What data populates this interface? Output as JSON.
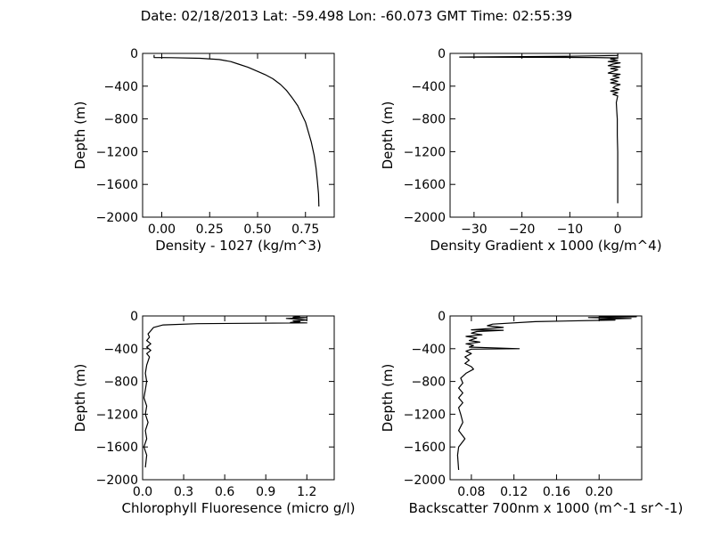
{
  "figure": {
    "title": "Date: 02/18/2013  Lat:  -59.498 Lon:  -60.073  GMT Time: 02:55:39"
  },
  "chart_data": [
    {
      "type": "line",
      "xlabel": "Density - 1027 (kg/m^3)",
      "ylabel": "Depth (m)",
      "xlim": [
        -0.1,
        0.9
      ],
      "ylim": [
        -2000,
        0
      ],
      "xticks": [
        0.0,
        0.25,
        0.5,
        0.75
      ],
      "xtick_labels": [
        "0.00",
        "0.25",
        "0.50",
        "0.75"
      ],
      "yticks": [
        0,
        -400,
        -800,
        -1200,
        -1600,
        -2000
      ],
      "ytick_labels": [
        "0",
        "−400",
        "−800",
        "−1200",
        "−1600",
        "−2000"
      ],
      "grid": false,
      "series": [
        {
          "points": [
            [
              -0.04,
              -20
            ],
            [
              -0.04,
              -50
            ],
            [
              0.05,
              -52
            ],
            [
              0.2,
              -60
            ],
            [
              0.3,
              -75
            ],
            [
              0.36,
              -100
            ],
            [
              0.4,
              -130
            ],
            [
              0.45,
              -170
            ],
            [
              0.5,
              -220
            ],
            [
              0.54,
              -260
            ],
            [
              0.58,
              -310
            ],
            [
              0.62,
              -380
            ],
            [
              0.65,
              -450
            ],
            [
              0.68,
              -540
            ],
            [
              0.71,
              -640
            ],
            [
              0.73,
              -740
            ],
            [
              0.75,
              -840
            ],
            [
              0.765,
              -960
            ],
            [
              0.78,
              -1080
            ],
            [
              0.795,
              -1240
            ],
            [
              0.805,
              -1400
            ],
            [
              0.812,
              -1560
            ],
            [
              0.818,
              -1720
            ],
            [
              0.82,
              -1870
            ]
          ]
        }
      ]
    },
    {
      "type": "line",
      "xlabel": "Density Gradient x 1000 (kg/m^4)",
      "ylabel": "Depth (m)",
      "xlim": [
        -35,
        5
      ],
      "ylim": [
        -2000,
        0
      ],
      "xticks": [
        -30,
        -20,
        -10,
        0
      ],
      "xtick_labels": [
        "−30",
        "−20",
        "−10",
        "0"
      ],
      "yticks": [
        0,
        -400,
        -800,
        -1200,
        -1600,
        -2000
      ],
      "ytick_labels": [
        "0",
        "−400",
        "−800",
        "−1200",
        "−1600",
        "−2000"
      ],
      "grid": false,
      "series": [
        {
          "points": [
            [
              0,
              -10
            ],
            [
              0,
              -25
            ],
            [
              -10,
              -35
            ],
            [
              -33,
              -45
            ],
            [
              -5,
              -50
            ],
            [
              0,
              -55
            ],
            [
              -1.5,
              -70
            ],
            [
              0,
              -85
            ],
            [
              -2,
              -100
            ],
            [
              0.5,
              -115
            ],
            [
              -1,
              -130
            ],
            [
              -2,
              -150
            ],
            [
              0.5,
              -165
            ],
            [
              -1.5,
              -185
            ],
            [
              0,
              -200
            ],
            [
              -1,
              -220
            ],
            [
              -2,
              -240
            ],
            [
              0.5,
              -255
            ],
            [
              -1,
              -275
            ],
            [
              0.3,
              -295
            ],
            [
              -1.5,
              -320
            ],
            [
              0,
              -340
            ],
            [
              -1.5,
              -360
            ],
            [
              0.5,
              -380
            ],
            [
              -0.5,
              -400
            ],
            [
              -1,
              -420
            ],
            [
              0.3,
              -440
            ],
            [
              -1.5,
              -460
            ],
            [
              0,
              -480
            ],
            [
              -1,
              -500
            ],
            [
              0,
              -520
            ],
            [
              -0.3,
              -600
            ],
            [
              -0.2,
              -700
            ],
            [
              -0.1,
              -800
            ],
            [
              -0.1,
              -1000
            ],
            [
              0,
              -1200
            ],
            [
              0,
              -1400
            ],
            [
              0,
              -1600
            ],
            [
              0,
              -1830
            ]
          ]
        }
      ]
    },
    {
      "type": "line",
      "xlabel": "Chlorophyll Fluoresence (micro g/l)",
      "ylabel": "Depth (m)",
      "xlim": [
        0.0,
        1.4
      ],
      "ylim": [
        -2000,
        0
      ],
      "xticks": [
        0.0,
        0.3,
        0.6,
        0.9,
        1.2
      ],
      "xtick_labels": [
        "0.0",
        "0.3",
        "0.6",
        "0.9",
        "1.2"
      ],
      "yticks": [
        0,
        -400,
        -800,
        -1200,
        -1600,
        -2000
      ],
      "ytick_labels": [
        "0",
        "−400",
        "−800",
        "−1200",
        "−1600",
        "−2000"
      ],
      "grid": false,
      "series": [
        {
          "points": [
            [
              1.15,
              -5
            ],
            [
              1.1,
              -15
            ],
            [
              1.2,
              -20
            ],
            [
              1.05,
              -30
            ],
            [
              1.15,
              -40
            ],
            [
              1.2,
              -50
            ],
            [
              1.1,
              -60
            ],
            [
              1.15,
              -70
            ],
            [
              1.08,
              -80
            ],
            [
              1.2,
              -85
            ],
            [
              0.4,
              -95
            ],
            [
              0.15,
              -110
            ],
            [
              0.08,
              -140
            ],
            [
              0.06,
              -180
            ],
            [
              0.04,
              -220
            ],
            [
              0.05,
              -260
            ],
            [
              0.03,
              -300
            ],
            [
              0.06,
              -340
            ],
            [
              0.03,
              -380
            ],
            [
              0.06,
              -420
            ],
            [
              0.03,
              -460
            ],
            [
              0.05,
              -500
            ],
            [
              0.03,
              -600
            ],
            [
              0.02,
              -700
            ],
            [
              0.03,
              -800
            ],
            [
              0.02,
              -900
            ],
            [
              0.01,
              -1000
            ],
            [
              0.03,
              -1100
            ],
            [
              0.02,
              -1200
            ],
            [
              0.04,
              -1300
            ],
            [
              0.02,
              -1400
            ],
            [
              0.03,
              -1500
            ],
            [
              0.01,
              -1600
            ],
            [
              0.03,
              -1700
            ],
            [
              0.02,
              -1850
            ]
          ]
        }
      ]
    },
    {
      "type": "line",
      "xlabel": "Backscatter 700nm x 1000 (m^-1 sr^-1)",
      "ylabel": "Depth (m)",
      "xlim": [
        0.06,
        0.24
      ],
      "ylim": [
        -2000,
        0
      ],
      "xticks": [
        0.08,
        0.12,
        0.16,
        0.2
      ],
      "xtick_labels": [
        "0.08",
        "0.12",
        "0.16",
        "0.20"
      ],
      "yticks": [
        0,
        -400,
        -800,
        -1200,
        -1600,
        -2000
      ],
      "ytick_labels": [
        "0",
        "−400",
        "−800",
        "−1200",
        "−1600",
        "−2000"
      ],
      "grid": false,
      "series": [
        {
          "points": [
            [
              0.2,
              -5
            ],
            [
              0.235,
              -10
            ],
            [
              0.19,
              -20
            ],
            [
              0.23,
              -30
            ],
            [
              0.2,
              -40
            ],
            [
              0.215,
              -50
            ],
            [
              0.14,
              -70
            ],
            [
              0.1,
              -100
            ],
            [
              0.095,
              -120
            ],
            [
              0.11,
              -140
            ],
            [
              0.09,
              -160
            ],
            [
              0.08,
              -170
            ],
            [
              0.11,
              -175
            ],
            [
              0.085,
              -190
            ],
            [
              0.08,
              -210
            ],
            [
              0.09,
              -230
            ],
            [
              0.075,
              -250
            ],
            [
              0.085,
              -270
            ],
            [
              0.078,
              -300
            ],
            [
              0.088,
              -320
            ],
            [
              0.075,
              -340
            ],
            [
              0.082,
              -360
            ],
            [
              0.078,
              -380
            ],
            [
              0.125,
              -400
            ],
            [
              0.08,
              -405
            ],
            [
              0.075,
              -430
            ],
            [
              0.08,
              -460
            ],
            [
              0.074,
              -500
            ],
            [
              0.078,
              -540
            ],
            [
              0.074,
              -580
            ],
            [
              0.08,
              -620
            ],
            [
              0.082,
              -650
            ],
            [
              0.075,
              -700
            ],
            [
              0.07,
              -760
            ],
            [
              0.072,
              -820
            ],
            [
              0.068,
              -880
            ],
            [
              0.072,
              -940
            ],
            [
              0.068,
              -1000
            ],
            [
              0.072,
              -1060
            ],
            [
              0.068,
              -1120
            ],
            [
              0.07,
              -1200
            ],
            [
              0.072,
              -1300
            ],
            [
              0.068,
              -1400
            ],
            [
              0.074,
              -1500
            ],
            [
              0.068,
              -1600
            ],
            [
              0.067,
              -1700
            ],
            [
              0.068,
              -1880
            ]
          ]
        }
      ]
    }
  ]
}
